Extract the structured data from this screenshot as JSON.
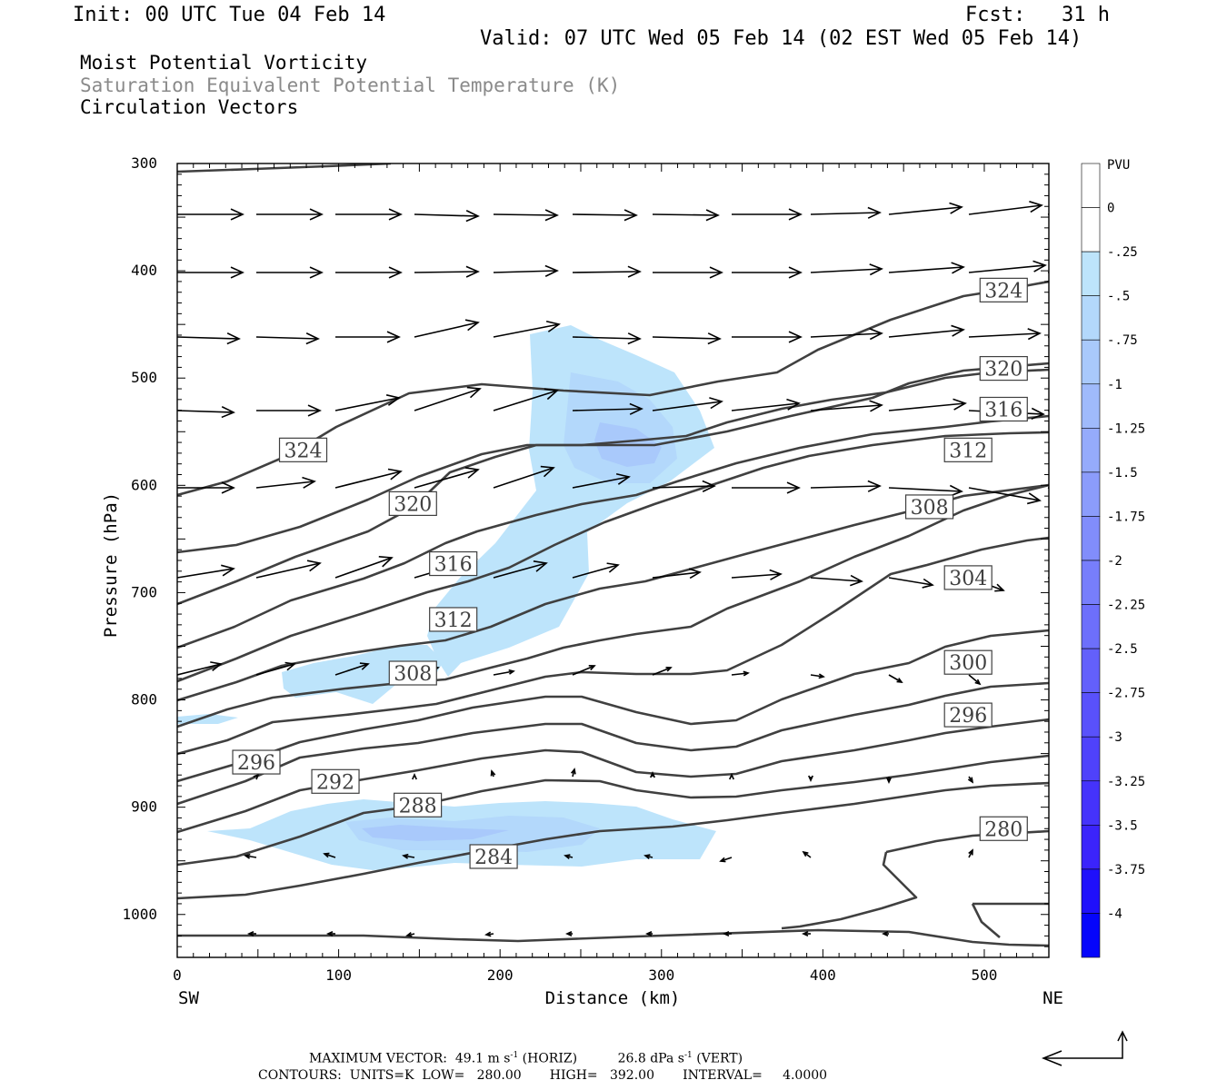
{
  "header": {
    "init": "Init: 00 UTC Tue 04 Feb 14",
    "fcst": "Fcst:   31 h",
    "valid": "Valid: 07 UTC Wed 05 Feb 14 (02 EST Wed 05 Feb 14)",
    "fields": [
      "Moist Potential Vorticity",
      "Saturation Equivalent Potential Temperature (K)",
      "Circulation Vectors"
    ]
  },
  "footer": {
    "max_vector": "MAXIMUM VECTOR:  49.1 m s",
    "horiz": "(HORIZ)",
    "vert_val": "26.8 dPa s",
    "vert": "(VERT)",
    "contours": "CONTOURS:  UNITS=K  LOW=   280.00       HIGH=   392.00       INTERVAL=     4.0000",
    "exponent": "-1"
  },
  "chart_data": {
    "type": "cross-section",
    "xlabel": "Distance (km)",
    "ylabel": "Pressure (hPa)",
    "xlim": [
      0,
      540
    ],
    "ylim": [
      1040,
      300
    ],
    "x_ticks": [
      0,
      100,
      200,
      300,
      400,
      500
    ],
    "y_ticks": [
      300,
      400,
      500,
      600,
      700,
      800,
      900,
      1000
    ],
    "endpoints": {
      "left": "SW",
      "right": "NE"
    },
    "colorbar": {
      "title": "PVU",
      "labels": [
        "0",
        "-.25",
        "-.5",
        "-.75",
        "-1",
        "-1.25",
        "-1.5",
        "-1.75",
        "-2",
        "-2.25",
        "-2.5",
        "-2.75",
        "-3",
        "-3.25",
        "-3.5",
        "-3.75",
        "-4"
      ],
      "colors": [
        "#ffffff",
        "#ffffff",
        "#bde4fb",
        "#b3d8fb",
        "#a9c9fb",
        "#9fbafb",
        "#95abfb",
        "#8b9cfb",
        "#818dfb",
        "#777efb",
        "#6d6ffb",
        "#6360fb",
        "#5951fb",
        "#4f42fb",
        "#4533fb",
        "#3b24fb",
        "#1f10fb",
        "#0505fb"
      ]
    },
    "contour_labels": [
      {
        "value": "324",
        "x": 78,
        "p": 567
      },
      {
        "value": "320",
        "x": 146,
        "p": 617
      },
      {
        "value": "316",
        "x": 171,
        "p": 673
      },
      {
        "value": "312",
        "x": 171,
        "p": 725
      },
      {
        "value": "308",
        "x": 146,
        "p": 775
      },
      {
        "value": "296",
        "x": 49,
        "p": 858
      },
      {
        "value": "292",
        "x": 98,
        "p": 876
      },
      {
        "value": "288",
        "x": 149,
        "p": 898
      },
      {
        "value": "284",
        "x": 196,
        "p": 946
      },
      {
        "value": "324",
        "x": 512,
        "p": 418
      },
      {
        "value": "320",
        "x": 512,
        "p": 491
      },
      {
        "value": "316",
        "x": 512,
        "p": 529
      },
      {
        "value": "312",
        "x": 490,
        "p": 567
      },
      {
        "value": "308",
        "x": 466,
        "p": 620
      },
      {
        "value": "304",
        "x": 490,
        "p": 686
      },
      {
        "value": "300",
        "x": 490,
        "p": 765
      },
      {
        "value": "296",
        "x": 490,
        "p": 814
      },
      {
        "value": "280",
        "x": 512,
        "p": 920
      }
    ]
  }
}
